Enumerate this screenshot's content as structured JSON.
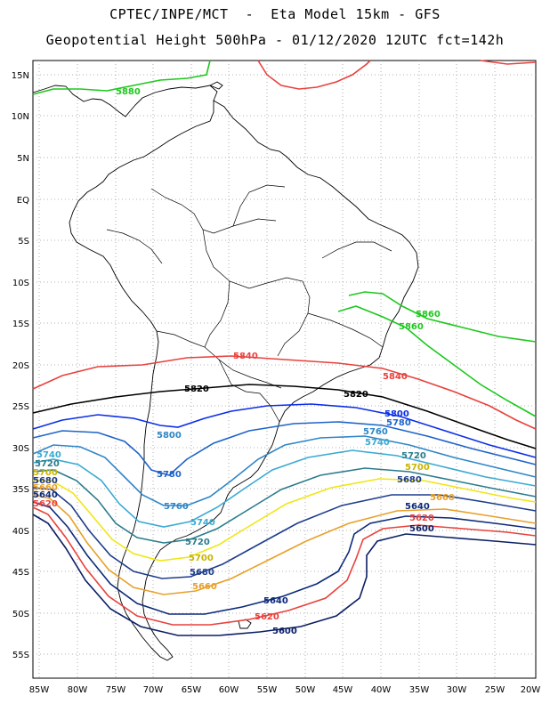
{
  "header": {
    "line1": "CPTEC/INPE/MCT  -  Eta Model 15km - GFS",
    "line2": "Geopotential Height 500hPa - 01/12/2020 12UTC fct=142h"
  },
  "axes": {
    "lat_labels": [
      "15N",
      "10N",
      "5N",
      "EQ",
      "5S",
      "10S",
      "15S",
      "20S",
      "25S",
      "30S",
      "35S",
      "40S",
      "45S",
      "50S",
      "55S"
    ],
    "lon_labels": [
      "85W",
      "80W",
      "75W",
      "70W",
      "65W",
      "60W",
      "55W",
      "50W",
      "45W",
      "40W",
      "35W",
      "30W",
      "25W",
      "20W"
    ]
  },
  "contours": [
    {
      "value": "5880",
      "color": "#1cc81c"
    },
    {
      "value": "5860",
      "color": "#1cc81c"
    },
    {
      "value": "5840",
      "color": "#e8413c"
    },
    {
      "value": "5820",
      "color": "#000000"
    },
    {
      "value": "5800",
      "color": "#0a2ee8"
    },
    {
      "value": "5780",
      "color": "#1e64c8"
    },
    {
      "value": "5760",
      "color": "#2e86c8"
    },
    {
      "value": "5740",
      "color": "#3aaad2"
    },
    {
      "value": "5720",
      "color": "#2a7c8c"
    },
    {
      "value": "5700",
      "color": "#f0e614"
    },
    {
      "value": "5680",
      "color": "#1e3c8c"
    },
    {
      "value": "5660",
      "color": "#e8a028"
    },
    {
      "value": "5640",
      "color": "#0c2a7a"
    },
    {
      "value": "5620",
      "color": "#e8413c"
    },
    {
      "value": "5600",
      "color": "#0a1e64"
    }
  ]
}
